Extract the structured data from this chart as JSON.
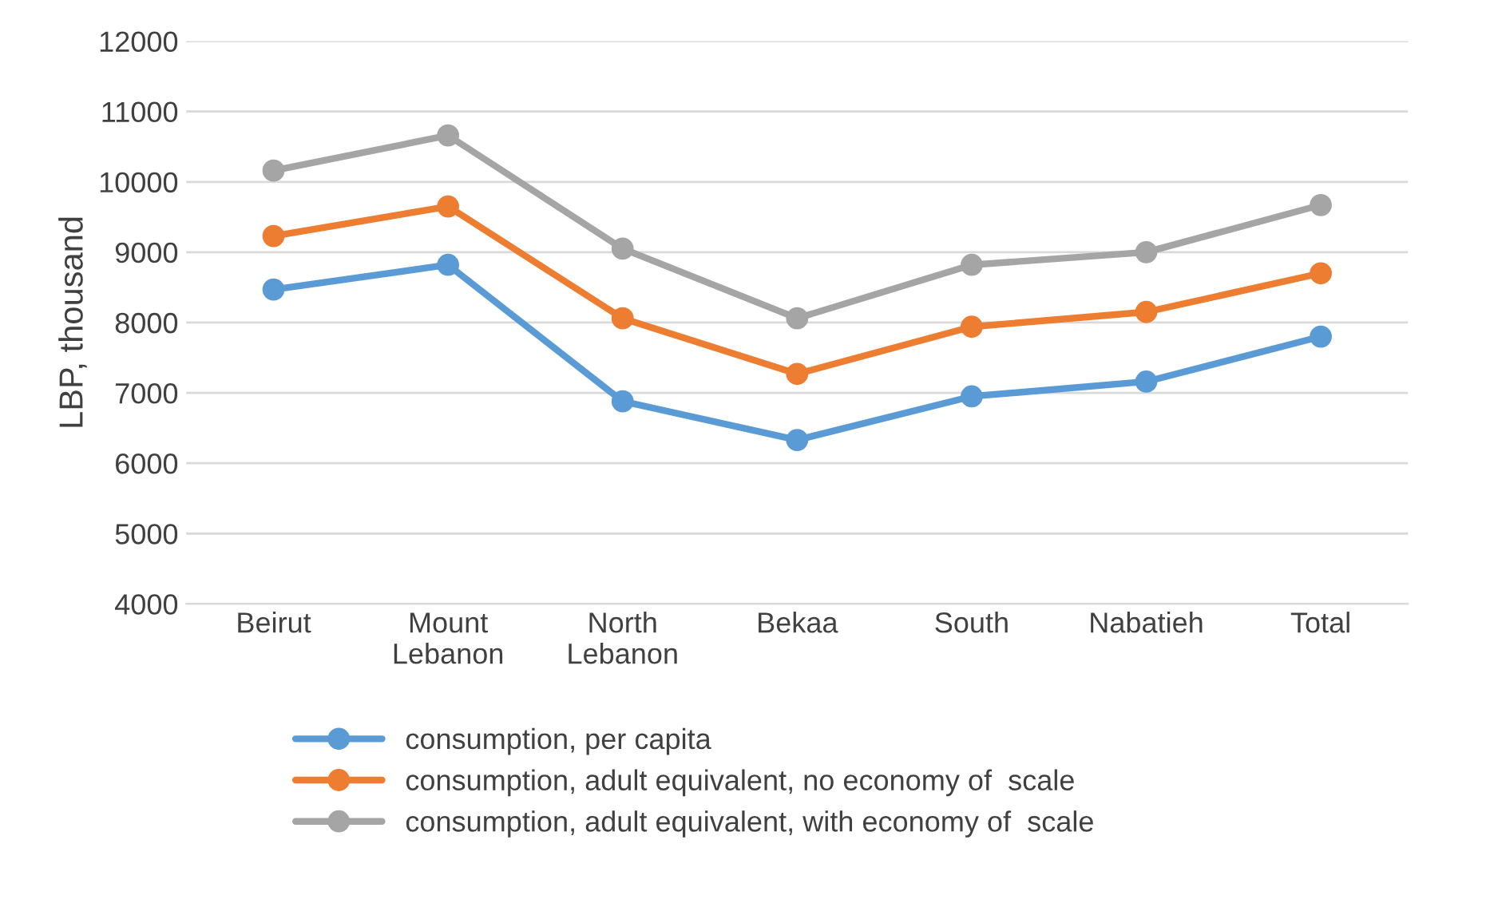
{
  "chart_data": {
    "type": "line",
    "ylabel": "LBP, thousand",
    "categories": [
      "Beirut",
      "Mount\nLebanon",
      "North\nLebanon",
      "Bekaa",
      "South",
      "Nabatieh",
      "Total"
    ],
    "series": [
      {
        "name": "consumption, per capita",
        "color": "#5b9bd5",
        "values": [
          8470,
          8820,
          6880,
          6330,
          6950,
          7160,
          7800
        ]
      },
      {
        "name": "consumption, adult equivalent, no economy of  scale",
        "color": "#ed7d31",
        "values": [
          9230,
          9650,
          8060,
          7270,
          7940,
          8150,
          8700
        ]
      },
      {
        "name": "consumption, adult equivalent, with economy of  scale",
        "color": "#a5a5a5",
        "values": [
          10160,
          10660,
          9050,
          8060,
          8820,
          9000,
          9670
        ]
      }
    ],
    "ylim": [
      4000,
      12000
    ],
    "yticks": [
      4000,
      5000,
      6000,
      7000,
      8000,
      9000,
      10000,
      11000,
      12000
    ],
    "grid": "y",
    "legend": "bottom",
    "marker": "circle",
    "line_style": "solid"
  }
}
